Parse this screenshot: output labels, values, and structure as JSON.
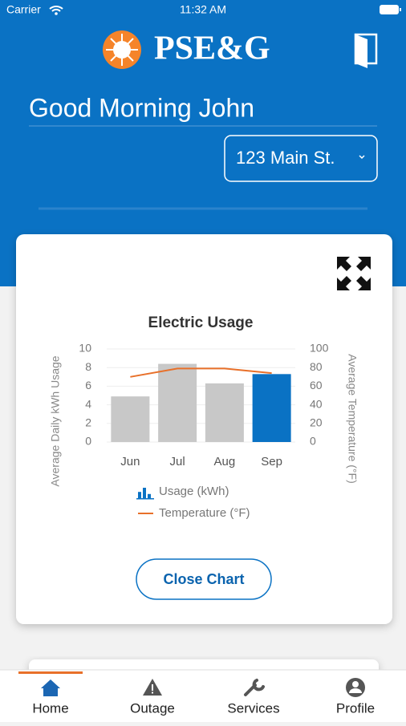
{
  "status_bar": {
    "carrier": "Carrier",
    "time": "11:32 AM"
  },
  "header": {
    "logo": "PSE&G",
    "greeting": "Good Morning John",
    "address": "123 Main St."
  },
  "chart_data": {
    "type": "bar",
    "title": "Electric Usage",
    "y_label": "Average Daily kWh Usage",
    "y2_label": "Average Temperature (°F)",
    "categories": [
      "Jun",
      "Jul",
      "Aug",
      "Sep"
    ],
    "series": [
      {
        "name": "Usage (kWh)",
        "type": "bar",
        "color": "#0a72c4",
        "colors": [
          "#c8c8c8",
          "#c8c8c8",
          "#c8c8c8",
          "#0a72c4"
        ],
        "values": [
          4.9,
          8.4,
          6.3,
          7.3
        ]
      },
      {
        "name": "Temperature (°F)",
        "type": "line",
        "color": "#e8702a",
        "axis": "y2",
        "values": [
          70,
          79,
          79,
          74
        ]
      }
    ],
    "ylim": [
      0,
      10
    ],
    "yticks": [
      0,
      2,
      4,
      6,
      8,
      10
    ],
    "y2lim": [
      0,
      100
    ],
    "y2ticks": [
      0,
      20,
      40,
      60,
      80,
      100
    ],
    "grid": true
  },
  "card": {
    "button": "Close Chart"
  },
  "tab_bar": {
    "tabs": [
      "Home",
      "Outage",
      "Services",
      "Profile"
    ],
    "active": 0
  }
}
